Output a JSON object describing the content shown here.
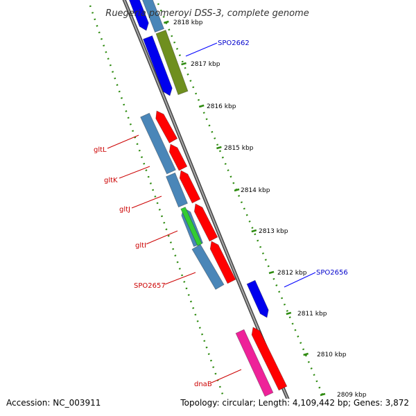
{
  "title": "Ruegeria pomeroyi DSS-3, complete genome",
  "footer": {
    "accession": "Accession: NC_003911",
    "summary": "Topology: circular; Length: 4,109,442 bp; Genes: 3,872"
  },
  "ticks": [
    "2818 kbp",
    "2817 kbp",
    "2816 kbp",
    "2815 kbp",
    "2814 kbp",
    "2813 kbp",
    "2812 kbp",
    "2811 kbp",
    "2810 kbp",
    "2809 kbp"
  ],
  "labels": {
    "left": [
      "gltL",
      "gltK",
      "gltJ",
      "gltI",
      "SPO2657",
      "dnaB"
    ],
    "right": [
      "SPO2662",
      "SPO2656"
    ]
  },
  "colors": {
    "backbone": "#8c8c8c",
    "dots": "#2e8b10",
    "cds_blue": "#0000ee",
    "cds_red": "#ff0000",
    "cds_steelblue": "#4a86b8",
    "cds_olive": "#6f8f1f",
    "cds_green": "#33cc33",
    "cds_magenta": "#ee2299",
    "label_red": "#cc0000",
    "label_blue": "#0000cc"
  }
}
